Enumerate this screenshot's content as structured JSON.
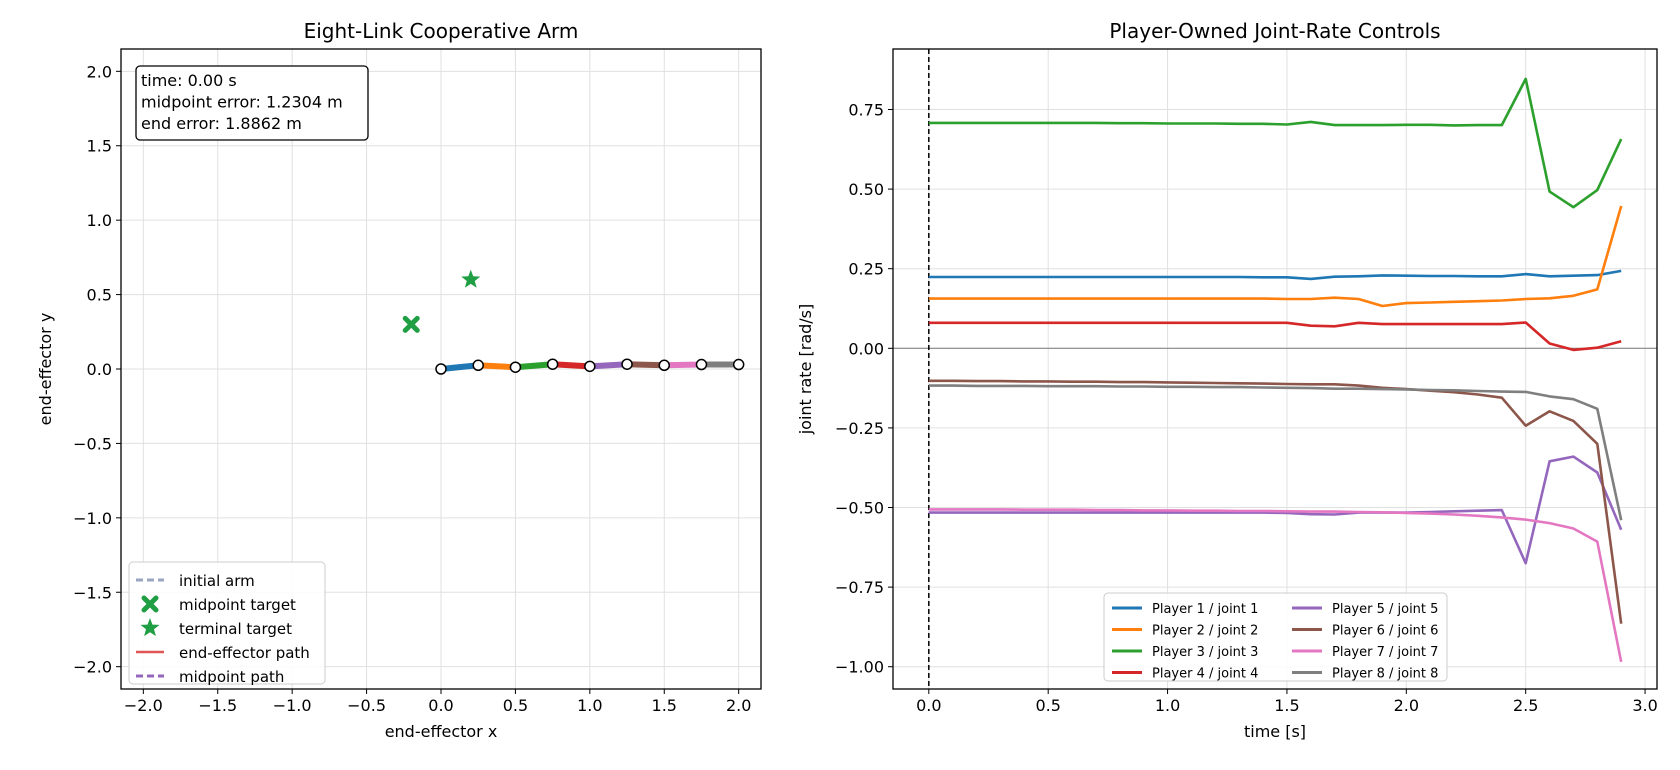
{
  "chart_data": [
    {
      "type": "scatter",
      "title": "Eight-Link Cooperative Arm",
      "xlabel": "end-effector x",
      "ylabel": "end-effector y",
      "xlim": [
        -2.15,
        2.15
      ],
      "ylim": [
        -2.15,
        2.15
      ],
      "xticks": [
        -2.0,
        -1.5,
        -1.0,
        -0.5,
        0.0,
        0.5,
        1.0,
        1.5,
        2.0
      ],
      "yticks": [
        -2.0,
        -1.5,
        -1.0,
        -0.5,
        0.0,
        0.5,
        1.0,
        1.5,
        2.0
      ],
      "tick_labels_x": [
        "−2.0",
        "−1.5",
        "−1.0",
        "−0.5",
        "0.0",
        "0.5",
        "1.0",
        "1.5",
        "2.0"
      ],
      "tick_labels_y": [
        "−2.0",
        "−1.5",
        "−1.0",
        "−0.5",
        "0.0",
        "0.5",
        "1.0",
        "1.5",
        "2.0"
      ],
      "grid": true,
      "info_box": [
        "time: 0.00 s",
        "midpoint error: 1.2304 m",
        "end error: 1.8862 m"
      ],
      "arm_joints": [
        {
          "x": 0.0,
          "y": 0.0
        },
        {
          "x": 0.25,
          "y": 0.025
        },
        {
          "x": 0.5,
          "y": 0.012
        },
        {
          "x": 0.75,
          "y": 0.032
        },
        {
          "x": 1.0,
          "y": 0.018
        },
        {
          "x": 1.25,
          "y": 0.032
        },
        {
          "x": 1.5,
          "y": 0.025
        },
        {
          "x": 1.75,
          "y": 0.03
        },
        {
          "x": 2.0,
          "y": 0.03
        }
      ],
      "link_colors": [
        "#1f77b4",
        "#ff7f0e",
        "#2ca02c",
        "#d62728",
        "#9467bd",
        "#8c564b",
        "#e377c2",
        "#7f7f7f"
      ],
      "midpoint_target": {
        "x": -0.2,
        "y": 0.3,
        "color": "#1f9e44"
      },
      "terminal_target": {
        "x": 0.2,
        "y": 0.6,
        "color": "#1f9e44"
      },
      "legend_position": "lower-left",
      "legend": [
        {
          "label": "initial arm",
          "style": "dashed",
          "color": "#9aa5bf"
        },
        {
          "label": "midpoint target",
          "style": "x-marker",
          "color": "#1f9e44"
        },
        {
          "label": "terminal target",
          "style": "star-marker",
          "color": "#1f9e44"
        },
        {
          "label": "end-effector path",
          "style": "solid",
          "color": "#e05555"
        },
        {
          "label": "midpoint path",
          "style": "dashed",
          "color": "#9467bd"
        }
      ]
    },
    {
      "type": "line",
      "title": "Player-Owned Joint-Rate Controls",
      "xlabel": "time [s]",
      "ylabel": "joint rate [rad/s]",
      "xlim": [
        -0.15,
        3.05
      ],
      "ylim": [
        -1.07,
        0.94
      ],
      "xticks": [
        0.0,
        0.5,
        1.0,
        1.5,
        2.0,
        2.5,
        3.0
      ],
      "yticks": [
        -1.0,
        -0.75,
        -0.5,
        -0.25,
        0.0,
        0.25,
        0.5,
        0.75
      ],
      "tick_labels_x": [
        "0.0",
        "0.5",
        "1.0",
        "1.5",
        "2.0",
        "2.5",
        "3.0"
      ],
      "tick_labels_y": [
        "−1.00",
        "−0.75",
        "−0.50",
        "−0.25",
        "0.00",
        "0.25",
        "0.50",
        "0.75"
      ],
      "grid": true,
      "zero_line": true,
      "current_time": 0.0,
      "legend_position": "lower-center",
      "x": [
        0.0,
        0.1,
        0.2,
        0.3,
        0.4,
        0.5,
        0.6,
        0.7,
        0.8,
        0.9,
        1.0,
        1.1,
        1.2,
        1.3,
        1.4,
        1.5,
        1.6,
        1.7,
        1.8,
        1.9,
        2.0,
        2.1,
        2.2,
        2.3,
        2.4,
        2.5,
        2.6,
        2.7,
        2.8,
        2.9
      ],
      "series": [
        {
          "name": "Player 1 / joint 1",
          "color": "#1f77b4",
          "values": [
            0.224,
            0.224,
            0.224,
            0.224,
            0.224,
            0.224,
            0.224,
            0.224,
            0.224,
            0.224,
            0.224,
            0.224,
            0.224,
            0.224,
            0.223,
            0.223,
            0.218,
            0.225,
            0.226,
            0.229,
            0.228,
            0.227,
            0.227,
            0.226,
            0.226,
            0.233,
            0.226,
            0.228,
            0.23,
            0.243
          ]
        },
        {
          "name": "Player 2 / joint 2",
          "color": "#ff7f0e",
          "values": [
            0.156,
            0.156,
            0.156,
            0.156,
            0.156,
            0.156,
            0.156,
            0.156,
            0.156,
            0.156,
            0.156,
            0.156,
            0.156,
            0.156,
            0.156,
            0.155,
            0.155,
            0.159,
            0.155,
            0.133,
            0.142,
            0.144,
            0.146,
            0.148,
            0.15,
            0.155,
            0.157,
            0.165,
            0.185,
            0.447
          ]
        },
        {
          "name": "Player 3 / joint 3",
          "color": "#2ca02c",
          "values": [
            0.708,
            0.708,
            0.708,
            0.708,
            0.708,
            0.708,
            0.708,
            0.708,
            0.707,
            0.707,
            0.706,
            0.706,
            0.706,
            0.705,
            0.705,
            0.703,
            0.711,
            0.701,
            0.701,
            0.701,
            0.702,
            0.702,
            0.7,
            0.701,
            0.701,
            0.846,
            0.492,
            0.443,
            0.497,
            0.657
          ]
        },
        {
          "name": "Player 4 / joint 4",
          "color": "#d62728",
          "values": [
            0.08,
            0.08,
            0.08,
            0.08,
            0.08,
            0.08,
            0.08,
            0.08,
            0.08,
            0.08,
            0.08,
            0.08,
            0.08,
            0.08,
            0.08,
            0.08,
            0.071,
            0.069,
            0.08,
            0.076,
            0.076,
            0.076,
            0.076,
            0.076,
            0.076,
            0.081,
            0.015,
            -0.005,
            0.002,
            0.022
          ]
        },
        {
          "name": "Player 5 / joint 5",
          "color": "#9467bd",
          "values": [
            -0.516,
            -0.516,
            -0.516,
            -0.516,
            -0.516,
            -0.516,
            -0.516,
            -0.516,
            -0.516,
            -0.516,
            -0.516,
            -0.516,
            -0.516,
            -0.516,
            -0.516,
            -0.517,
            -0.521,
            -0.522,
            -0.516,
            -0.516,
            -0.516,
            -0.514,
            -0.512,
            -0.51,
            -0.508,
            -0.675,
            -0.355,
            -0.34,
            -0.39,
            -0.57
          ]
        },
        {
          "name": "Player 6 / joint 6",
          "color": "#8c564b",
          "values": [
            -0.102,
            -0.102,
            -0.103,
            -0.103,
            -0.104,
            -0.104,
            -0.105,
            -0.105,
            -0.106,
            -0.106,
            -0.107,
            -0.108,
            -0.109,
            -0.11,
            -0.111,
            -0.112,
            -0.113,
            -0.113,
            -0.117,
            -0.124,
            -0.128,
            -0.133,
            -0.138,
            -0.145,
            -0.155,
            -0.243,
            -0.198,
            -0.228,
            -0.3,
            -0.865
          ]
        },
        {
          "name": "Player 7 / joint 7",
          "color": "#e377c2",
          "values": [
            -0.506,
            -0.506,
            -0.506,
            -0.506,
            -0.507,
            -0.507,
            -0.507,
            -0.508,
            -0.508,
            -0.509,
            -0.509,
            -0.51,
            -0.51,
            -0.511,
            -0.511,
            -0.512,
            -0.513,
            -0.513,
            -0.514,
            -0.515,
            -0.517,
            -0.519,
            -0.522,
            -0.526,
            -0.531,
            -0.538,
            -0.549,
            -0.566,
            -0.607,
            -0.985
          ]
        },
        {
          "name": "Player 8 / joint 8",
          "color": "#7f7f7f",
          "values": [
            -0.117,
            -0.117,
            -0.118,
            -0.118,
            -0.118,
            -0.119,
            -0.119,
            -0.119,
            -0.12,
            -0.12,
            -0.121,
            -0.121,
            -0.122,
            -0.122,
            -0.123,
            -0.124,
            -0.125,
            -0.127,
            -0.127,
            -0.128,
            -0.129,
            -0.131,
            -0.132,
            -0.134,
            -0.136,
            -0.137,
            -0.151,
            -0.16,
            -0.19,
            -0.54
          ]
        }
      ]
    }
  ]
}
